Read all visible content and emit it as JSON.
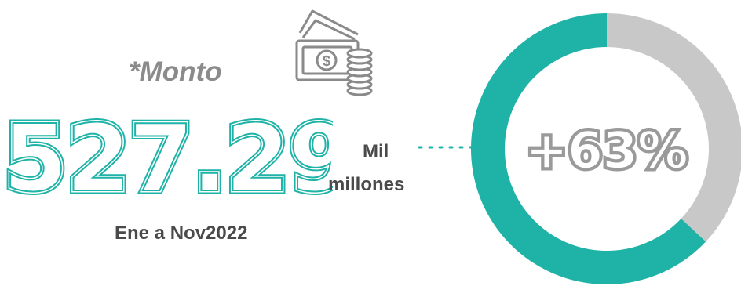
{
  "kpi": {
    "label": "*Monto",
    "value": "527.293",
    "unit_line1": "Mil",
    "unit_line2": "millones",
    "period": "Ene a Nov2022"
  },
  "icon": "money-cash-coins-icon",
  "colors": {
    "accent": "#1fb3a8",
    "remainder": "#c8c8c8",
    "text": "#4a4a4a",
    "label": "#8b8b8b",
    "percent_text": "#9a9a9a"
  },
  "chart_data": {
    "type": "pie",
    "title": "",
    "categories": [
      "",
      ""
    ],
    "values": [
      63,
      37
    ],
    "center_label": "+63%"
  }
}
